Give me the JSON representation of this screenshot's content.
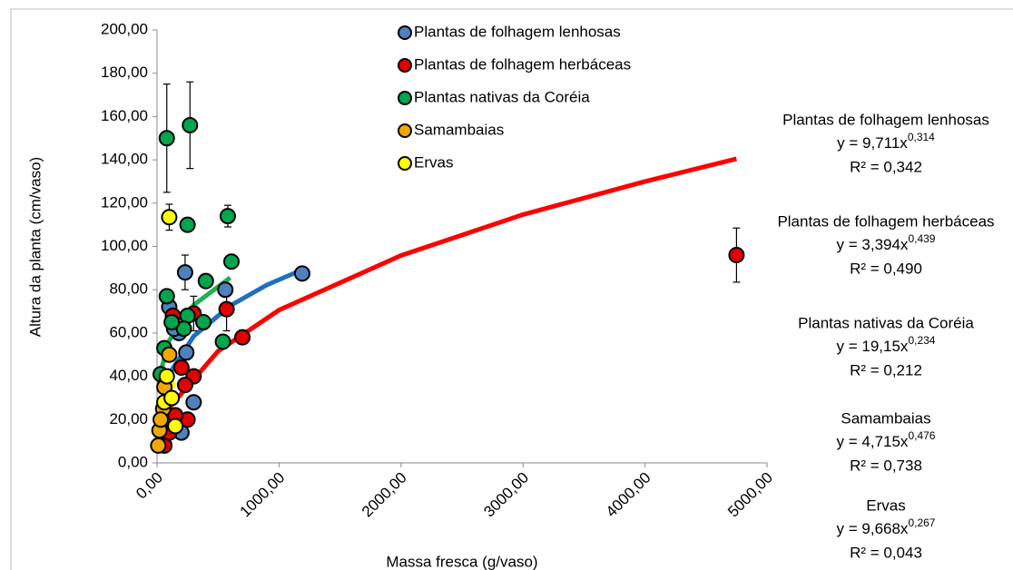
{
  "chart_data": {
    "type": "scatter",
    "x_label": "Massa fresca (g/vaso)",
    "y_label": "Altura da planta (cm/vaso)",
    "xlim": [
      0,
      5000
    ],
    "ylim": [
      0,
      200
    ],
    "xticks": [
      {
        "value": 0,
        "label": "0,00"
      },
      {
        "value": 1000,
        "label": "1000,00"
      },
      {
        "value": 2000,
        "label": "2000,00"
      },
      {
        "value": 3000,
        "label": "3000,00"
      },
      {
        "value": 4000,
        "label": "4000,00"
      },
      {
        "value": 5000,
        "label": "5000,00"
      }
    ],
    "yticks": [
      {
        "value": 0,
        "label": "0,00"
      },
      {
        "value": 20,
        "label": "20,00"
      },
      {
        "value": 40,
        "label": "40,00"
      },
      {
        "value": 60,
        "label": "60,00"
      },
      {
        "value": 80,
        "label": "80,00"
      },
      {
        "value": 100,
        "label": "100,00"
      },
      {
        "value": 120,
        "label": "120,00"
      },
      {
        "value": 140,
        "label": "140,00"
      },
      {
        "value": 160,
        "label": "160,00"
      },
      {
        "value": 180,
        "label": "180,00"
      },
      {
        "value": 200,
        "label": "200,00"
      }
    ],
    "series": [
      {
        "name": "Plantas de folhagem lenhosas",
        "color": "#4f81bd",
        "trend_color": "#1f6fbf",
        "x": [
          1190,
          230,
          560,
          180,
          300,
          200,
          100,
          140,
          240
        ],
        "values": [
          87.5,
          88,
          80,
          60,
          28,
          14,
          72,
          62,
          51
        ],
        "errors": [
          null,
          8,
          null,
          null,
          null,
          null,
          null,
          null,
          null
        ],
        "trend": {
          "x": [
            100,
            300,
            600,
            900,
            1180
          ],
          "values": [
            41.1,
            58.5,
            72.6,
            82.2,
            89
          ]
        },
        "equation": "y = 9,711x",
        "exponent": "0,314",
        "r2": "R² = 0,342"
      },
      {
        "name": "Plantas de folhagem herbáceas",
        "color": "#e00000",
        "trend_color": "#ff0000",
        "x": [
          4750,
          700,
          570,
          300,
          250,
          230,
          200,
          130,
          150,
          60,
          100,
          300
        ],
        "values": [
          96,
          58,
          71,
          40,
          20,
          36,
          44,
          68,
          22,
          8,
          14,
          69
        ],
        "errors": [
          12.5,
          null,
          10,
          null,
          null,
          null,
          null,
          null,
          null,
          null,
          null,
          8
        ],
        "trend": {
          "x": [
            60,
            100,
            500,
            1000,
            2000,
            3000,
            4000,
            4750
          ],
          "values": [
            19.7,
            25.5,
            51.6,
            70.6,
            95.8,
            114.7,
            130,
            140.5
          ]
        },
        "equation": "y = 3,394x",
        "exponent": "0,439",
        "r2": "R² = 0,490"
      },
      {
        "name": "Plantas nativas da Coréia",
        "color": "#00a550",
        "trend_color": "#1fb050",
        "x": [
          80,
          270,
          580,
          250,
          610,
          400,
          80,
          250,
          220,
          120,
          380,
          540,
          30,
          60
        ],
        "values": [
          150,
          156,
          114,
          110,
          93,
          84,
          77,
          68,
          62,
          65,
          65,
          56,
          41,
          53
        ],
        "errors": [
          25,
          20,
          5,
          null,
          null,
          null,
          null,
          null,
          null,
          null,
          null,
          null,
          null,
          null
        ],
        "trend": {
          "x": [
            30,
            100,
            300,
            600
          ],
          "values": [
            42.2,
            56.5,
            72.9,
            85.6
          ]
        },
        "equation": "y = 19,15x",
        "exponent": "0,234",
        "r2": "R² = 0,212"
      },
      {
        "name": "Samambaias",
        "color": "#f0a800",
        "trend_color": "#f0a800",
        "x": [
          10,
          20,
          50,
          60,
          100,
          30
        ],
        "values": [
          8,
          15,
          25,
          35,
          50,
          20
        ],
        "errors": [
          null,
          null,
          null,
          null,
          null,
          null
        ],
        "trend": {
          "x": [
            5,
            20,
            50,
            90
          ],
          "values": [
            10.2,
            19.5,
            30,
            40
          ]
        },
        "equation": "y = 4,715x",
        "exponent": "0,476",
        "r2": "R² = 0,738"
      },
      {
        "name": "Ervas",
        "color": "#ffff00",
        "trend_color": "#ffff00",
        "x": [
          100,
          150,
          80,
          60,
          120
        ],
        "values": [
          113.5,
          17,
          40,
          28,
          30
        ],
        "errors": [
          6,
          null,
          null,
          null,
          null
        ],
        "trend": {
          "x": [
            5,
            20,
            50,
            100,
            150
          ],
          "values": [
            13.4,
            21.6,
            27.5,
            33.6,
            37.4
          ]
        },
        "equation": "y = 9,668x",
        "exponent": "0,267",
        "r2": "R² = 0,043"
      }
    ]
  }
}
